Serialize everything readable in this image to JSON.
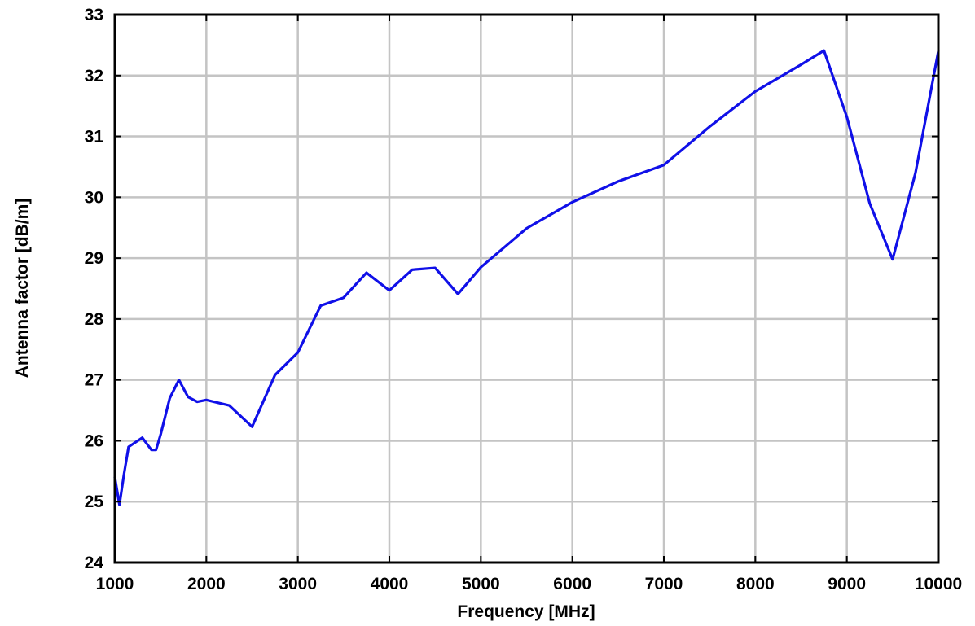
{
  "chart_data": {
    "type": "line",
    "title": "",
    "xlabel": "Frequency [MHz]",
    "ylabel": "Antenna factor [dB/m]",
    "xlim": [
      1000,
      10000
    ],
    "ylim": [
      24,
      33
    ],
    "xticks": [
      1000,
      2000,
      3000,
      4000,
      5000,
      6000,
      7000,
      8000,
      9000,
      10000
    ],
    "yticks": [
      24,
      25,
      26,
      27,
      28,
      29,
      30,
      31,
      32,
      33
    ],
    "grid": true,
    "legend": "none",
    "series": [
      {
        "color": "#1010e8",
        "x": [
          1000,
          1050,
          1100,
          1150,
          1200,
          1300,
          1400,
          1450,
          1500,
          1600,
          1700,
          1800,
          1900,
          2000,
          2250,
          2500,
          2750,
          3000,
          3250,
          3500,
          3750,
          4000,
          4250,
          4500,
          4750,
          5000,
          5500,
          6000,
          6500,
          7000,
          7500,
          8000,
          8500,
          8750,
          9000,
          9250,
          9500,
          9750,
          10000
        ],
        "y": [
          25.4,
          24.95,
          25.45,
          25.9,
          25.95,
          26.05,
          25.85,
          25.85,
          26.1,
          26.7,
          27.0,
          26.72,
          26.64,
          26.67,
          26.58,
          26.23,
          27.08,
          27.45,
          28.22,
          28.35,
          28.76,
          28.47,
          28.81,
          28.84,
          28.41,
          28.85,
          29.49,
          29.92,
          30.26,
          30.53,
          31.16,
          31.74,
          32.18,
          32.41,
          31.32,
          29.9,
          28.98,
          30.4,
          32.4
        ]
      }
    ]
  }
}
